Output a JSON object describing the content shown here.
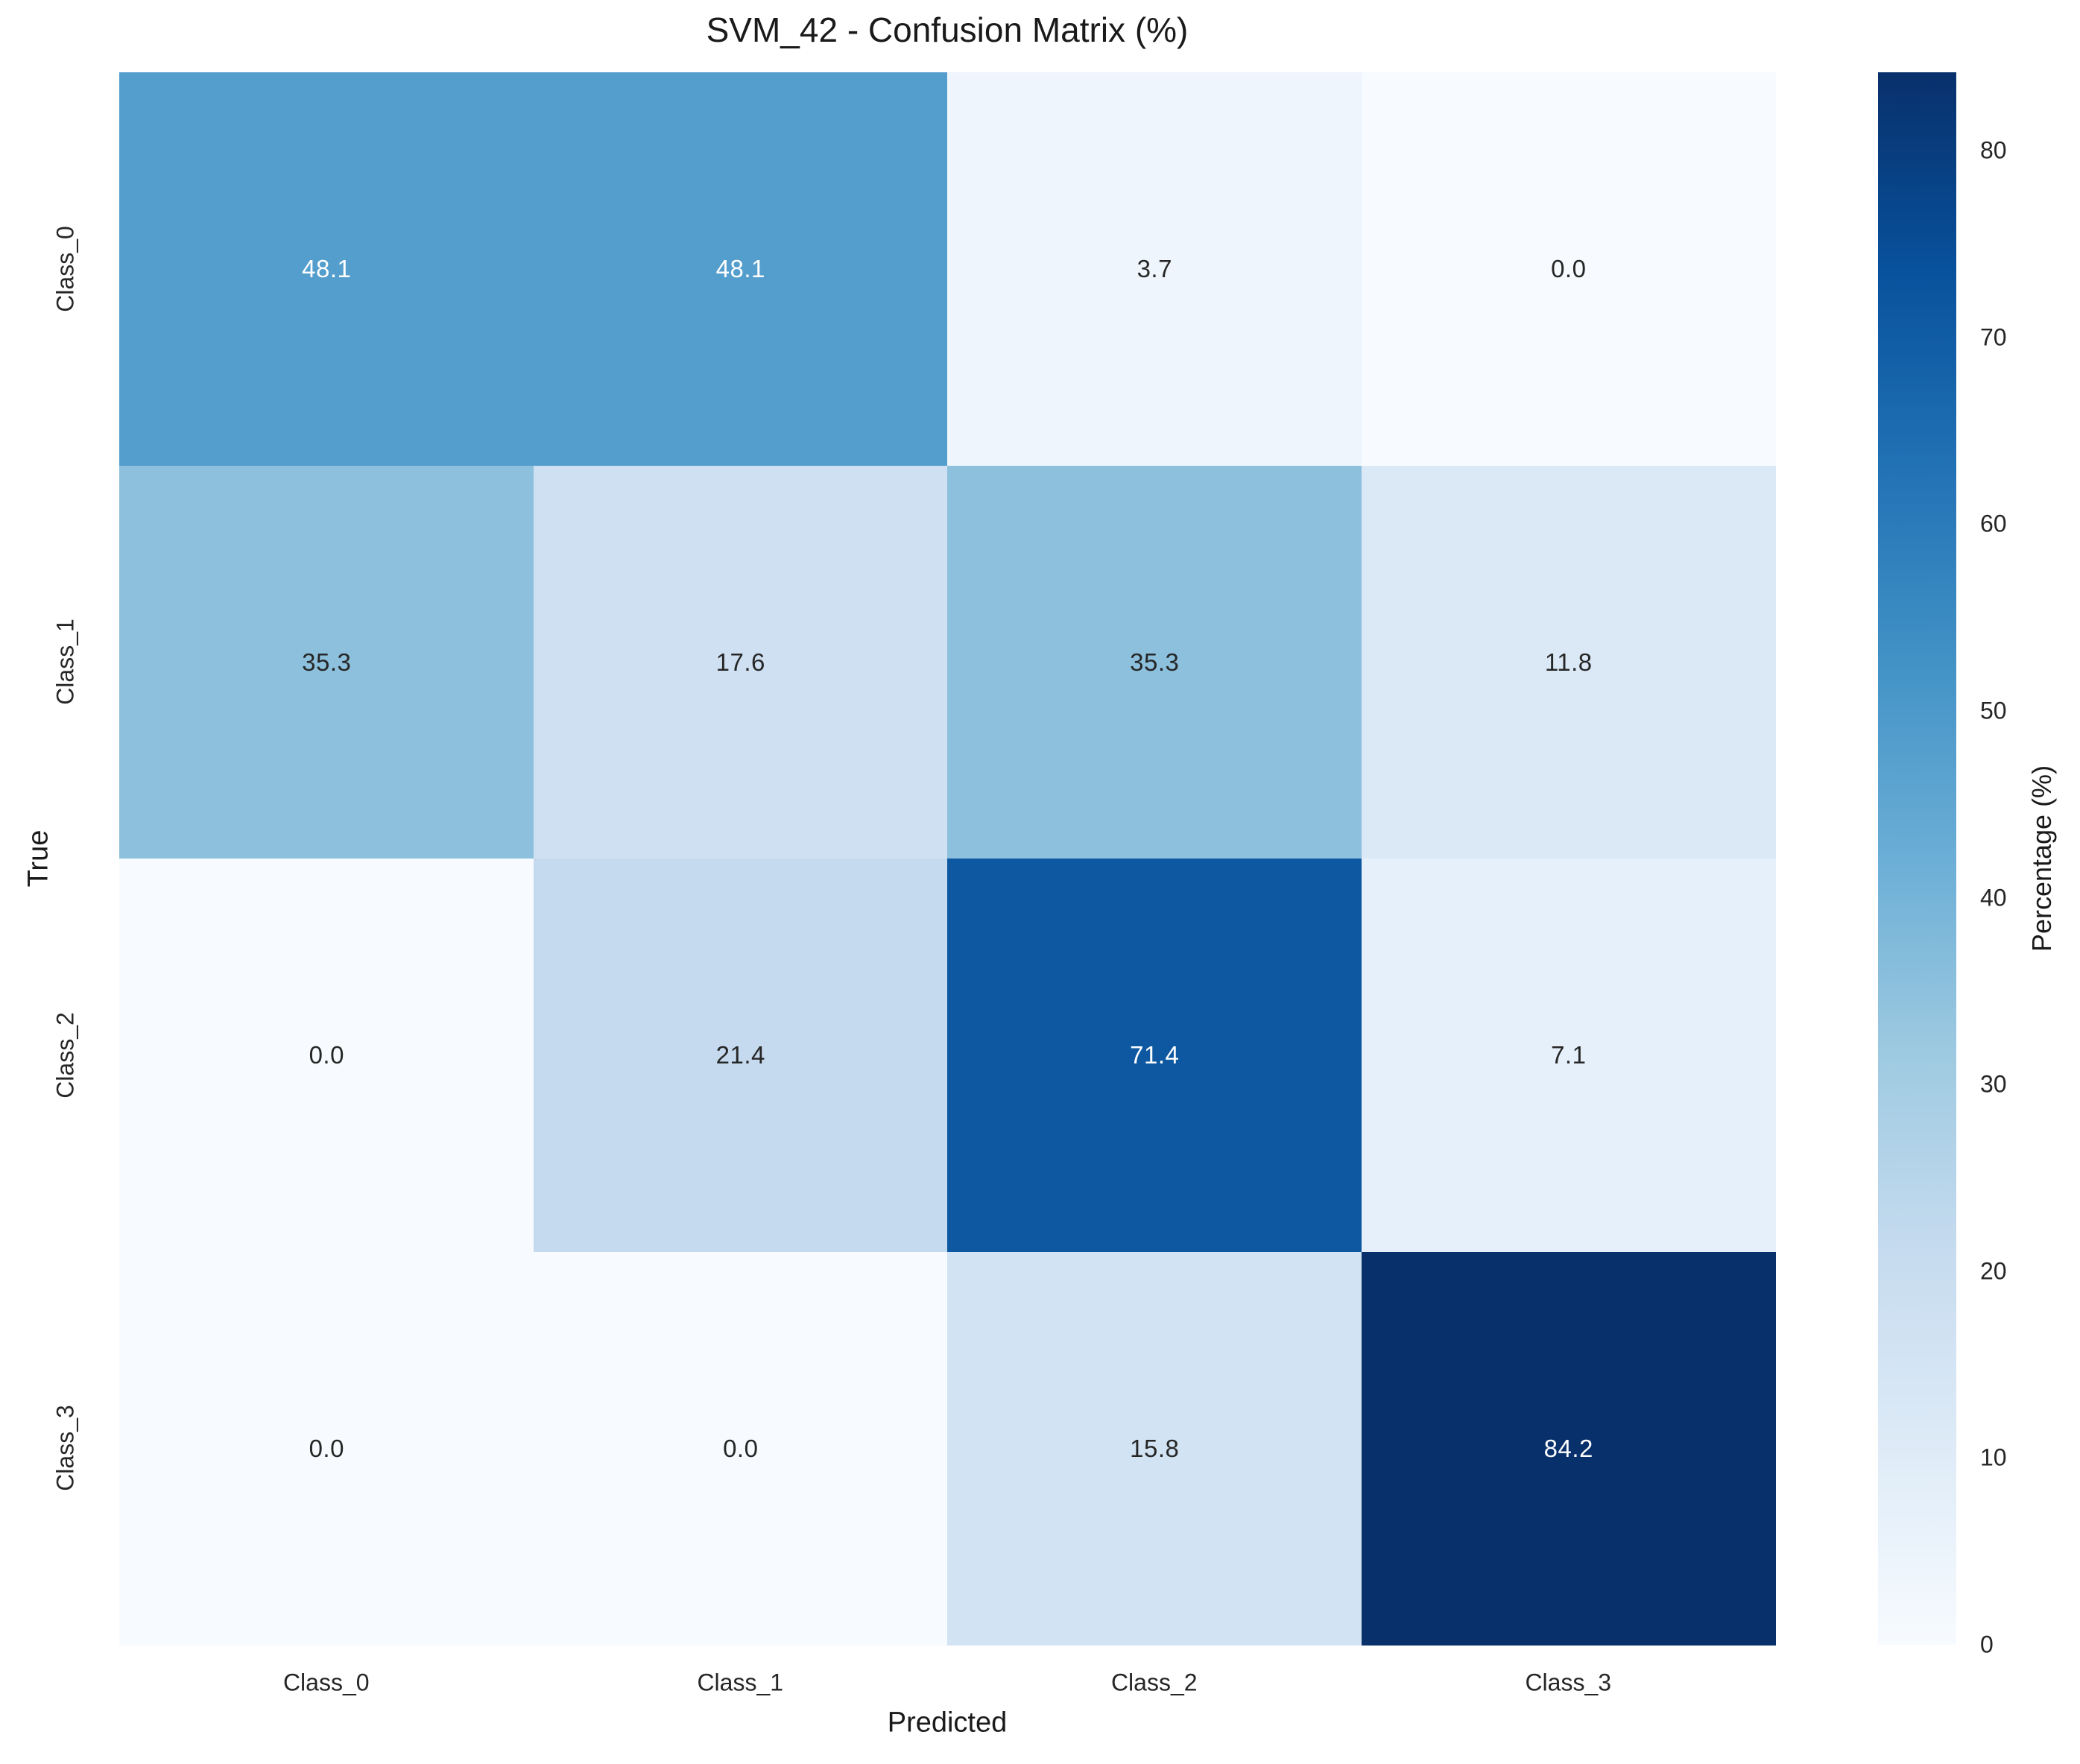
{
  "chart_data": {
    "type": "heatmap",
    "title": "SVM_42 - Confusion Matrix (%)",
    "xlabel": "Predicted",
    "ylabel": "True",
    "x_categories": [
      "Class_0",
      "Class_1",
      "Class_2",
      "Class_3"
    ],
    "y_categories": [
      "Class_0",
      "Class_1",
      "Class_2",
      "Class_3"
    ],
    "values": [
      [
        48.1,
        48.1,
        3.7,
        0.0
      ],
      [
        35.3,
        17.6,
        35.3,
        11.8
      ],
      [
        0.0,
        21.4,
        71.4,
        7.1
      ],
      [
        0.0,
        0.0,
        15.8,
        84.2
      ]
    ],
    "labels": [
      [
        "48.1",
        "48.1",
        "3.7",
        "0.0"
      ],
      [
        "35.3",
        "17.6",
        "35.3",
        "11.8"
      ],
      [
        "0.0",
        "21.4",
        "71.4",
        "7.1"
      ],
      [
        "0.0",
        "0.0",
        "15.8",
        "84.2"
      ]
    ],
    "cell_colors": [
      [
        "#549ecd",
        "#549ecd",
        "#eef5fc",
        "#f7fbff"
      ],
      [
        "#8cc0dd",
        "#cee0f2",
        "#8cc0dd",
        "#dbe9f6"
      ],
      [
        "#f7fbff",
        "#c5daef",
        "#0d58a1",
        "#e6f0fa"
      ],
      [
        "#f7fbff",
        "#f7fbff",
        "#d2e3f3",
        "#08306b"
      ]
    ],
    "text_colors": [
      [
        "#ffffff",
        "#ffffff",
        "#262626",
        "#262626"
      ],
      [
        "#262626",
        "#262626",
        "#262626",
        "#262626"
      ],
      [
        "#262626",
        "#262626",
        "#ffffff",
        "#262626"
      ],
      [
        "#262626",
        "#262626",
        "#262626",
        "#ffffff"
      ]
    ],
    "vmin": 0,
    "vmax": 84.2,
    "colormap": "Blues",
    "grid": false,
    "legend": false,
    "colorbar": {
      "label": "Percentage (%)",
      "ticks": [
        "0",
        "10",
        "20",
        "30",
        "40",
        "50",
        "60",
        "70",
        "80"
      ],
      "gradient_stops_bottom_to_top": [
        "#f7fbff",
        "#deebf7",
        "#c6dbef",
        "#9ecae1",
        "#6baed6",
        "#4292c6",
        "#2171b5",
        "#08519c",
        "#08306b"
      ]
    }
  },
  "colors": {
    "background": "#ffffff",
    "annotation_dark": "#262626",
    "annotation_light": "#ffffff",
    "axis_text": "#1a1a1a"
  }
}
